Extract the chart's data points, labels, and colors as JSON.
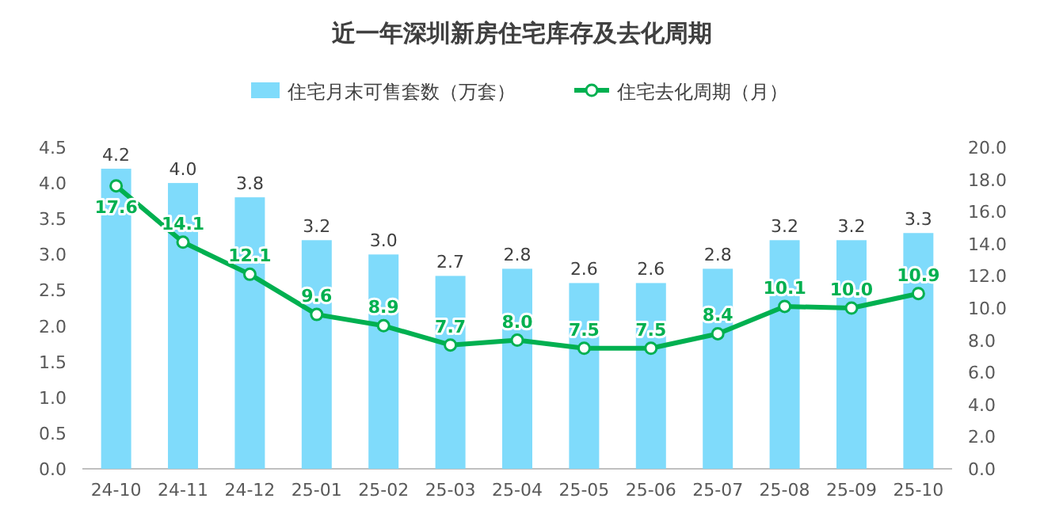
{
  "chart_data": {
    "type": "bar",
    "title": "近一年深圳新房住宅库存及去化周期",
    "categories": [
      "24-10",
      "24-11",
      "24-12",
      "25-01",
      "25-02",
      "25-03",
      "25-04",
      "25-05",
      "25-06",
      "25-07",
      "25-08",
      "25-09",
      "25-10"
    ],
    "series": [
      {
        "name": "住宅月末可售套数（万套）",
        "color": "#7fdbfb",
        "values": [
          4.2,
          4.0,
          3.8,
          3.2,
          3.0,
          2.7,
          2.8,
          2.6,
          2.6,
          2.8,
          3.2,
          3.2,
          3.3
        ],
        "value_labels": [
          "4.2",
          "4.0",
          "3.8",
          "3.2",
          "3.0",
          "2.7",
          "2.8",
          "2.6",
          "2.6",
          "2.8",
          "3.2",
          "3.2",
          "3.3"
        ]
      },
      {
        "name": "住宅去化周期（月）",
        "type": "line",
        "axis": "y2",
        "color": "#00b050",
        "marker": "circle",
        "line_style": "solid",
        "values": [
          17.6,
          14.1,
          12.1,
          9.6,
          8.9,
          7.7,
          8.0,
          7.5,
          7.5,
          8.4,
          10.1,
          10.0,
          10.9
        ],
        "value_labels": [
          "17.6",
          "14.1",
          "12.1",
          "9.6",
          "8.9",
          "7.7",
          "8.0",
          "7.5",
          "7.5",
          "8.4",
          "10.1",
          "10.0",
          "10.9"
        ]
      }
    ],
    "ylim": [
      0,
      4.5
    ],
    "yticks": [
      {
        "value": 0,
        "label": "0.0"
      },
      {
        "value": 0.5,
        "label": "0.5"
      },
      {
        "value": 1,
        "label": "1.0"
      },
      {
        "value": 1.5,
        "label": "1.5"
      },
      {
        "value": 2,
        "label": "2.0"
      },
      {
        "value": 2.5,
        "label": "2.5"
      },
      {
        "value": 3,
        "label": "3.0"
      },
      {
        "value": 3.5,
        "label": "3.5"
      },
      {
        "value": 4,
        "label": "4.0"
      },
      {
        "value": 4.5,
        "label": "4.5"
      }
    ],
    "y2lim": [
      0,
      20
    ],
    "y2ticks": [
      {
        "value": 0,
        "label": "0.0"
      },
      {
        "value": 2,
        "label": "2.0"
      },
      {
        "value": 4,
        "label": "4.0"
      },
      {
        "value": 6,
        "label": "6.0"
      },
      {
        "value": 8,
        "label": "8.0"
      },
      {
        "value": 10,
        "label": "10.0"
      },
      {
        "value": 12,
        "label": "12.0"
      },
      {
        "value": 14,
        "label": "14.0"
      },
      {
        "value": 16,
        "label": "16.0"
      },
      {
        "value": 18,
        "label": "18.0"
      },
      {
        "value": 20,
        "label": "20.0"
      }
    ],
    "grid": false,
    "legend": "top"
  }
}
